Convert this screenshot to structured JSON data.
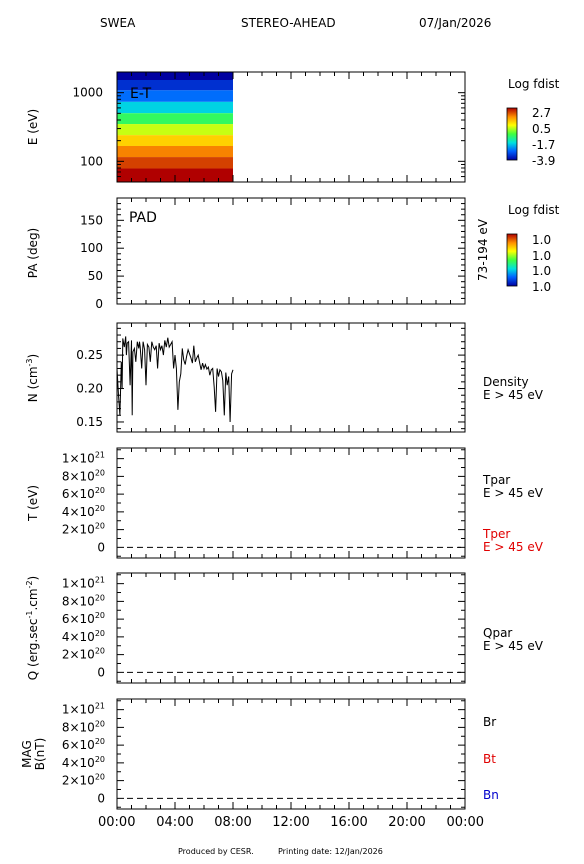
{
  "header": {
    "instrument": "SWEA",
    "spacecraft": "STEREO-AHEAD",
    "date": "07/Jan/2026"
  },
  "footer": {
    "produced": "Produced by CESR.",
    "printing": "Printing date: 12/Jan/2026"
  },
  "colors": {
    "red": "#e00000",
    "blue": "#0000cc",
    "black": "#000000"
  },
  "chart_data": [
    {
      "type": "heatmap",
      "ylabel": "E (eV)",
      "yscale": "log",
      "ylim": [
        50,
        2000
      ],
      "yticks": [
        "1000",
        "100"
      ],
      "annotation": "E-T",
      "x_coverage": [
        "00:00",
        "08:00"
      ],
      "energy_bands_eV": [
        1800,
        1300,
        900,
        600,
        420,
        290,
        200,
        140,
        95,
        65
      ],
      "band_log_fdist": [
        -3.9,
        -3.3,
        -2.6,
        -1.7,
        -0.8,
        0.1,
        0.8,
        1.5,
        2.1,
        2.7
      ],
      "colorbar": {
        "title": "Log fdist",
        "labels": [
          "2.7",
          "0.5",
          "-1.7",
          "-3.9"
        ]
      }
    },
    {
      "type": "heatmap",
      "ylabel": "PA (deg)",
      "ylim": [
        0,
        190
      ],
      "yticks": [
        "150",
        "100",
        "50",
        "0"
      ],
      "annotation": "PAD",
      "right_label": "73-194 eV",
      "colorbar": {
        "title": "Log fdist",
        "labels": [
          "1.0",
          "1.0",
          "1.0",
          "1.0"
        ]
      }
    },
    {
      "type": "line",
      "ylabel_main": "N (cm",
      "ylabel_sup": "-3",
      "ylabel_tail": ")",
      "ylim": [
        0.135,
        0.298
      ],
      "yticks": [
        "0.25",
        "0.20",
        "0.15"
      ],
      "series": [
        {
          "name": "Density",
          "sublabel": "E > 45 eV",
          "x_hours": [
            0.0,
            0.1,
            0.2,
            0.3,
            0.35,
            0.4,
            0.5,
            0.6,
            0.65,
            0.7,
            0.8,
            0.9,
            1.0,
            1.05,
            1.1,
            1.2,
            1.3,
            1.4,
            1.5,
            1.55,
            1.6,
            1.7,
            1.8,
            1.9,
            2.0,
            2.1,
            2.2,
            2.3,
            2.4,
            2.5,
            2.6,
            2.7,
            2.8,
            2.9,
            3.0,
            3.1,
            3.2,
            3.3,
            3.4,
            3.5,
            3.6,
            3.7,
            3.8,
            3.9,
            4.0,
            4.1,
            4.2,
            4.3,
            4.4,
            4.5,
            4.6,
            4.7,
            4.8,
            4.9,
            5.0,
            5.1,
            5.2,
            5.3,
            5.4,
            5.5,
            5.6,
            5.7,
            5.8,
            5.9,
            6.0,
            6.1,
            6.2,
            6.3,
            6.4,
            6.5,
            6.6,
            6.7,
            6.8,
            6.9,
            7.0,
            7.1,
            7.2,
            7.3,
            7.4,
            7.5,
            7.6,
            7.7,
            7.8,
            7.9,
            8.0
          ],
          "values": [
            0.23,
            0.19,
            0.16,
            0.24,
            0.2,
            0.275,
            0.262,
            0.278,
            0.25,
            0.268,
            0.27,
            0.205,
            0.272,
            0.16,
            0.255,
            0.26,
            0.24,
            0.27,
            0.26,
            0.27,
            0.262,
            0.23,
            0.27,
            0.258,
            0.205,
            0.266,
            0.262,
            0.24,
            0.27,
            0.262,
            0.258,
            0.264,
            0.23,
            0.268,
            0.258,
            0.264,
            0.25,
            0.272,
            0.262,
            0.276,
            0.262,
            0.266,
            0.27,
            0.23,
            0.25,
            0.23,
            0.168,
            0.21,
            0.222,
            0.26,
            0.243,
            0.236,
            0.248,
            0.258,
            0.252,
            0.246,
            0.238,
            0.264,
            0.24,
            0.246,
            0.25,
            0.238,
            0.228,
            0.238,
            0.23,
            0.236,
            0.229,
            0.232,
            0.22,
            0.228,
            0.23,
            0.202,
            0.165,
            0.23,
            0.218,
            0.228,
            0.225,
            0.212,
            0.16,
            0.224,
            0.205,
            0.218,
            0.15,
            0.222,
            0.228
          ]
        }
      ]
    },
    {
      "type": "line",
      "ylabel": "T (eV)",
      "ylim": [
        -1.2e+20,
        1.12e+21
      ],
      "yticks": [
        {
          "m": "1×10",
          "e": "21"
        },
        {
          "m": "8×10",
          "e": "20"
        },
        {
          "m": "6×10",
          "e": "20"
        },
        {
          "m": "4×10",
          "e": "20"
        },
        {
          "m": "2×10",
          "e": "20"
        },
        {
          "m": "0",
          "e": ""
        }
      ],
      "series": [
        {
          "name": "Tpar",
          "sublabel": "E > 45 eV"
        },
        {
          "name": "Tper",
          "sublabel": "E > 45 eV"
        }
      ]
    },
    {
      "type": "line",
      "ylabel_main": "Q (erg.sec",
      "ylabel_sup1": "-1",
      "ylabel_mid": ".cm",
      "ylabel_sup2": "-2",
      "ylabel_tail": ")",
      "ylim": [
        -1.2e+20,
        1.12e+21
      ],
      "yticks": [
        {
          "m": "1×10",
          "e": "21"
        },
        {
          "m": "8×10",
          "e": "20"
        },
        {
          "m": "6×10",
          "e": "20"
        },
        {
          "m": "4×10",
          "e": "20"
        },
        {
          "m": "2×10",
          "e": "20"
        },
        {
          "m": "0",
          "e": ""
        }
      ],
      "series": [
        {
          "name": "Qpar",
          "sublabel": "E > 45 eV"
        }
      ]
    },
    {
      "type": "line",
      "ylabel_top": "MAG",
      "ylabel_bottom": "B(nT)",
      "ylim": [
        -1.2e+20,
        1.12e+21
      ],
      "yticks": [
        {
          "m": "1×10",
          "e": "21"
        },
        {
          "m": "8×10",
          "e": "20"
        },
        {
          "m": "6×10",
          "e": "20"
        },
        {
          "m": "4×10",
          "e": "20"
        },
        {
          "m": "2×10",
          "e": "20"
        },
        {
          "m": "0",
          "e": ""
        }
      ],
      "series": [
        {
          "name": "Br"
        },
        {
          "name": "Bt"
        },
        {
          "name": "Bn"
        }
      ]
    }
  ],
  "x_axis": {
    "ticks": [
      "00:00",
      "04:00",
      "08:00",
      "12:00",
      "16:00",
      "20:00",
      "00:00"
    ],
    "range_hours": [
      0,
      24
    ]
  }
}
